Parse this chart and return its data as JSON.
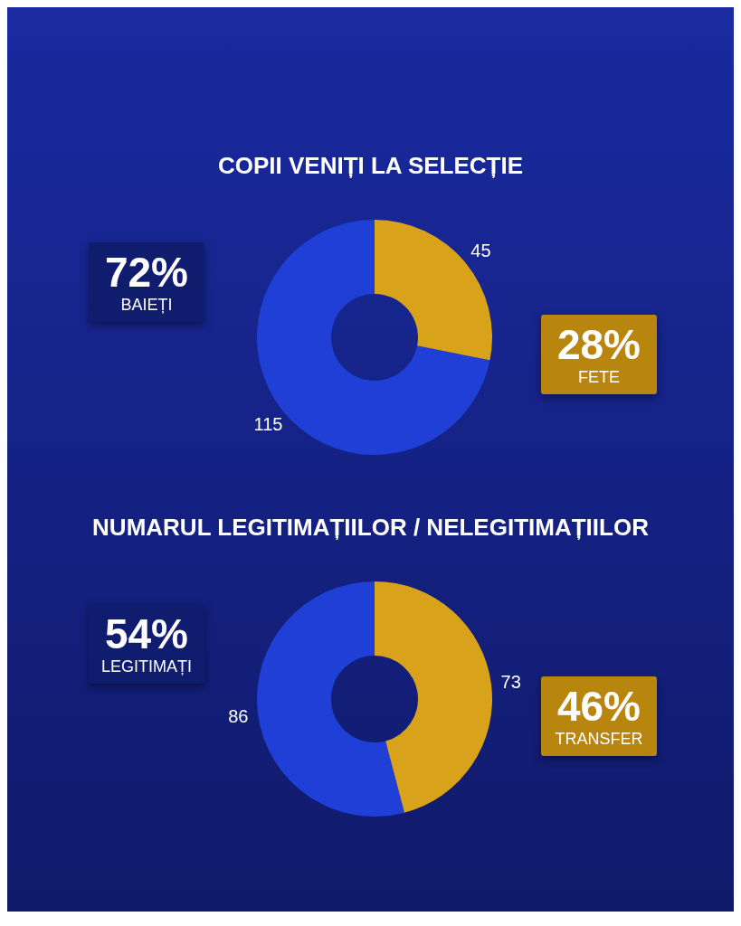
{
  "chart_data": [
    {
      "type": "donut",
      "title": "COPII VENIȚI LA SELECȚIE",
      "categories": [
        "BAIEȚI",
        "FETE"
      ],
      "values": [
        115,
        45
      ],
      "colors": [
        "#1f3fd6",
        "#d9a21b"
      ],
      "data_labels": true,
      "annotations": [
        "72%",
        "28%"
      ]
    },
    {
      "type": "donut",
      "title": "NUMARUL LEGITIMAȚIILOR / NELEGITIMAȚIILOR",
      "categories": [
        "LEGITIMAȚI",
        "TRANSFER"
      ],
      "values": [
        86,
        73
      ],
      "colors": [
        "#1f3fd6",
        "#d9a21b"
      ],
      "data_labels": true,
      "annotations": [
        "54%",
        "46%"
      ]
    }
  ]
}
